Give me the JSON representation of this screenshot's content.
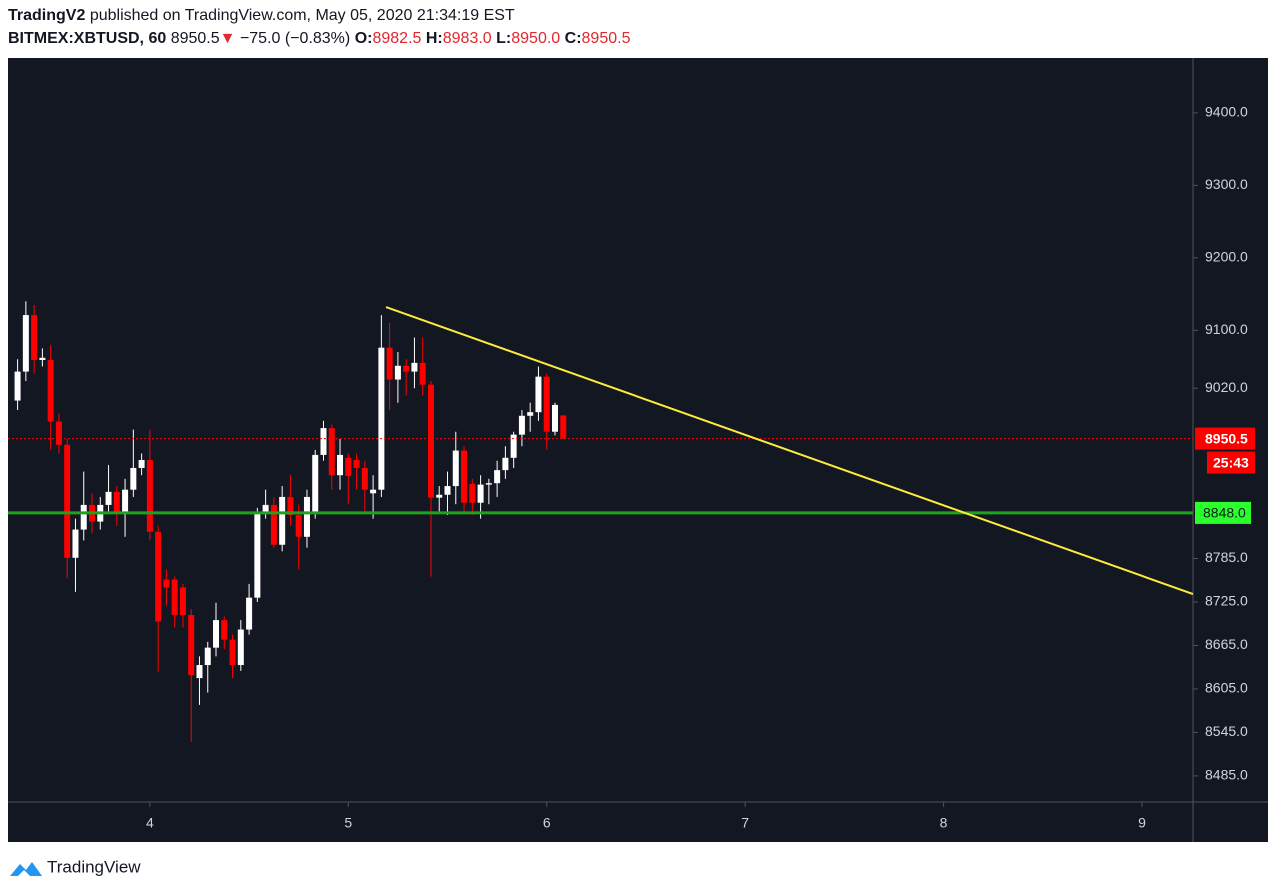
{
  "header": {
    "publisher": "TradingV2",
    "published": "published on TradingView.com, May 05, 2020 21:34:19 EST",
    "symbol": "BITMEX:XBTUSD, 60",
    "last": "8950.5",
    "arrow": "▼",
    "change": "−75.0 (−0.83%)",
    "ohlc": [
      {
        "label": "O:",
        "value": "8982.5"
      },
      {
        "label": "H:",
        "value": "8983.0"
      },
      {
        "label": "L:",
        "value": "8950.0"
      },
      {
        "label": "C:",
        "value": "8950.5"
      }
    ]
  },
  "footer": {
    "brand": "TradingView"
  },
  "chart_data": {
    "type": "candlestick",
    "up_color": "#ffffff",
    "down_color": "#ff0000",
    "x": [
      3.3333,
      3.375,
      3.4167,
      3.4583,
      3.5,
      3.5417,
      3.5833,
      3.625,
      3.6667,
      3.7083,
      3.75,
      3.7917,
      3.8333,
      3.875,
      3.9167,
      3.9583,
      4,
      4.0417,
      4.0833,
      4.125,
      4.1667,
      4.2083,
      4.25,
      4.2917,
      4.3333,
      4.375,
      4.4167,
      4.4583,
      4.5,
      4.5417,
      4.5833,
      4.625,
      4.6667,
      4.7083,
      4.75,
      4.7917,
      4.8333,
      4.875,
      4.9167,
      4.9583,
      5,
      5.0417,
      5.0833,
      5.125,
      5.1667,
      5.2083,
      5.25,
      5.2917,
      5.3333,
      5.375,
      5.4167,
      5.4583,
      5.5,
      5.5417,
      5.5833,
      5.625,
      5.6667,
      5.7083,
      5.75,
      5.7917,
      5.8333,
      5.875,
      5.9167,
      5.9583,
      6,
      6.0417,
      6.0833
    ],
    "open": [
      9003,
      9043,
      9121,
      9059,
      9059,
      8974,
      8942,
      8786,
      8825,
      8859,
      8836,
      8859,
      8877,
      8848,
      8880,
      8910,
      8921,
      8822,
      8756,
      8756,
      8745,
      8707,
      8620,
      8638,
      8662,
      8700,
      8673,
      8638,
      8687,
      8731,
      8849,
      8859,
      8804,
      8870,
      8845,
      8815,
      8848,
      8928,
      8965,
      8900,
      8924,
      8921,
      8910,
      8875,
      8880,
      9076,
      9032,
      9051,
      9043,
      9055,
      9025,
      8869,
      8873,
      8885,
      8934,
      8888,
      8862,
      8887,
      8889,
      8907,
      8924,
      8956,
      8982,
      8987,
      9036,
      8960,
      8982.5
    ],
    "high": [
      9060,
      9140,
      9135,
      9075,
      9080,
      8985,
      8950,
      8840,
      8905,
      8875,
      8870,
      8914,
      8885,
      8895,
      8963,
      8930,
      8963,
      8830,
      8770,
      8760,
      8750,
      8715,
      8650,
      8670,
      8724,
      8705,
      8680,
      8700,
      8750,
      8855,
      8880,
      8870,
      8885,
      8900,
      8860,
      8880,
      8935,
      8975,
      8970,
      8950,
      8930,
      8930,
      8920,
      8900,
      9121,
      9110,
      9070,
      9060,
      9090,
      9090,
      9030,
      8885,
      8905,
      8960,
      8940,
      8895,
      8900,
      8895,
      8920,
      8940,
      8960,
      8990,
      9000,
      9050,
      9040,
      9000,
      8983
    ],
    "low": [
      8990,
      9030,
      9040,
      9050,
      8935,
      8930,
      8758,
      8739,
      8810,
      8820,
      8825,
      8850,
      8830,
      8815,
      8870,
      8900,
      8810,
      8629,
      8720,
      8690,
      8690,
      8532,
      8583,
      8600,
      8650,
      8660,
      8620,
      8630,
      8680,
      8725,
      8840,
      8800,
      8795,
      8830,
      8770,
      8800,
      8840,
      8920,
      8880,
      8880,
      8860,
      8880,
      8850,
      8840,
      8870,
      8990,
      9000,
      9010,
      9020,
      9010,
      8760,
      8850,
      8845,
      8860,
      8850,
      8845,
      8840,
      8860,
      8870,
      8895,
      8910,
      8940,
      8960,
      8975,
      8935,
      8955,
      8950
    ],
    "close": [
      9043,
      9121,
      9059,
      9062,
      8974,
      8942,
      8786,
      8825,
      8859,
      8836,
      8859,
      8877,
      8848,
      8880,
      8910,
      8921,
      8822,
      8698,
      8745,
      8707,
      8707,
      8624,
      8638,
      8662,
      8700,
      8673,
      8638,
      8687,
      8731,
      8849,
      8859,
      8804,
      8870,
      8845,
      8815,
      8870,
      8928,
      8965,
      8900,
      8928,
      8899,
      8910,
      8880,
      8880,
      9076,
      9032,
      9051,
      9043,
      9055,
      9025,
      8869,
      8873,
      8885,
      8934,
      8862,
      8862,
      8887,
      8889,
      8907,
      8924,
      8956,
      8982,
      8987,
      9036,
      8960,
      8997,
      8950.5
    ],
    "xlim": [
      3.285,
      9.257
    ],
    "xticks": [
      4,
      5,
      6,
      7,
      8,
      9
    ],
    "ylim": [
      8449,
      9473
    ],
    "yticks": [
      {
        "value": 9400,
        "label": "9400.0"
      },
      {
        "value": 9300,
        "label": "9300.0"
      },
      {
        "value": 9200,
        "label": "9200.0"
      },
      {
        "value": 9100,
        "label": "9100.0"
      },
      {
        "value": 9020,
        "label": "9020.0"
      },
      {
        "value": 8785,
        "label": "8785.0"
      },
      {
        "value": 8725,
        "label": "8725.0"
      },
      {
        "value": 8665,
        "label": "8665.0"
      },
      {
        "value": 8605,
        "label": "8605.0"
      },
      {
        "value": 8545,
        "label": "8545.0"
      },
      {
        "value": 8485,
        "label": "8485.0"
      }
    ],
    "price_line": {
      "value": 8950.5,
      "label": "8950.5",
      "countdown": "25:43",
      "color": "#ff0000"
    },
    "horizontal_line": {
      "value": 8848,
      "label": "8848.0",
      "color": "#1fa31f",
      "label_color": "#2bff2b"
    },
    "trendline": {
      "x": [
        5.19,
        9.257
      ],
      "y": [
        9132,
        8736
      ],
      "color": "#ffeb3b"
    }
  }
}
